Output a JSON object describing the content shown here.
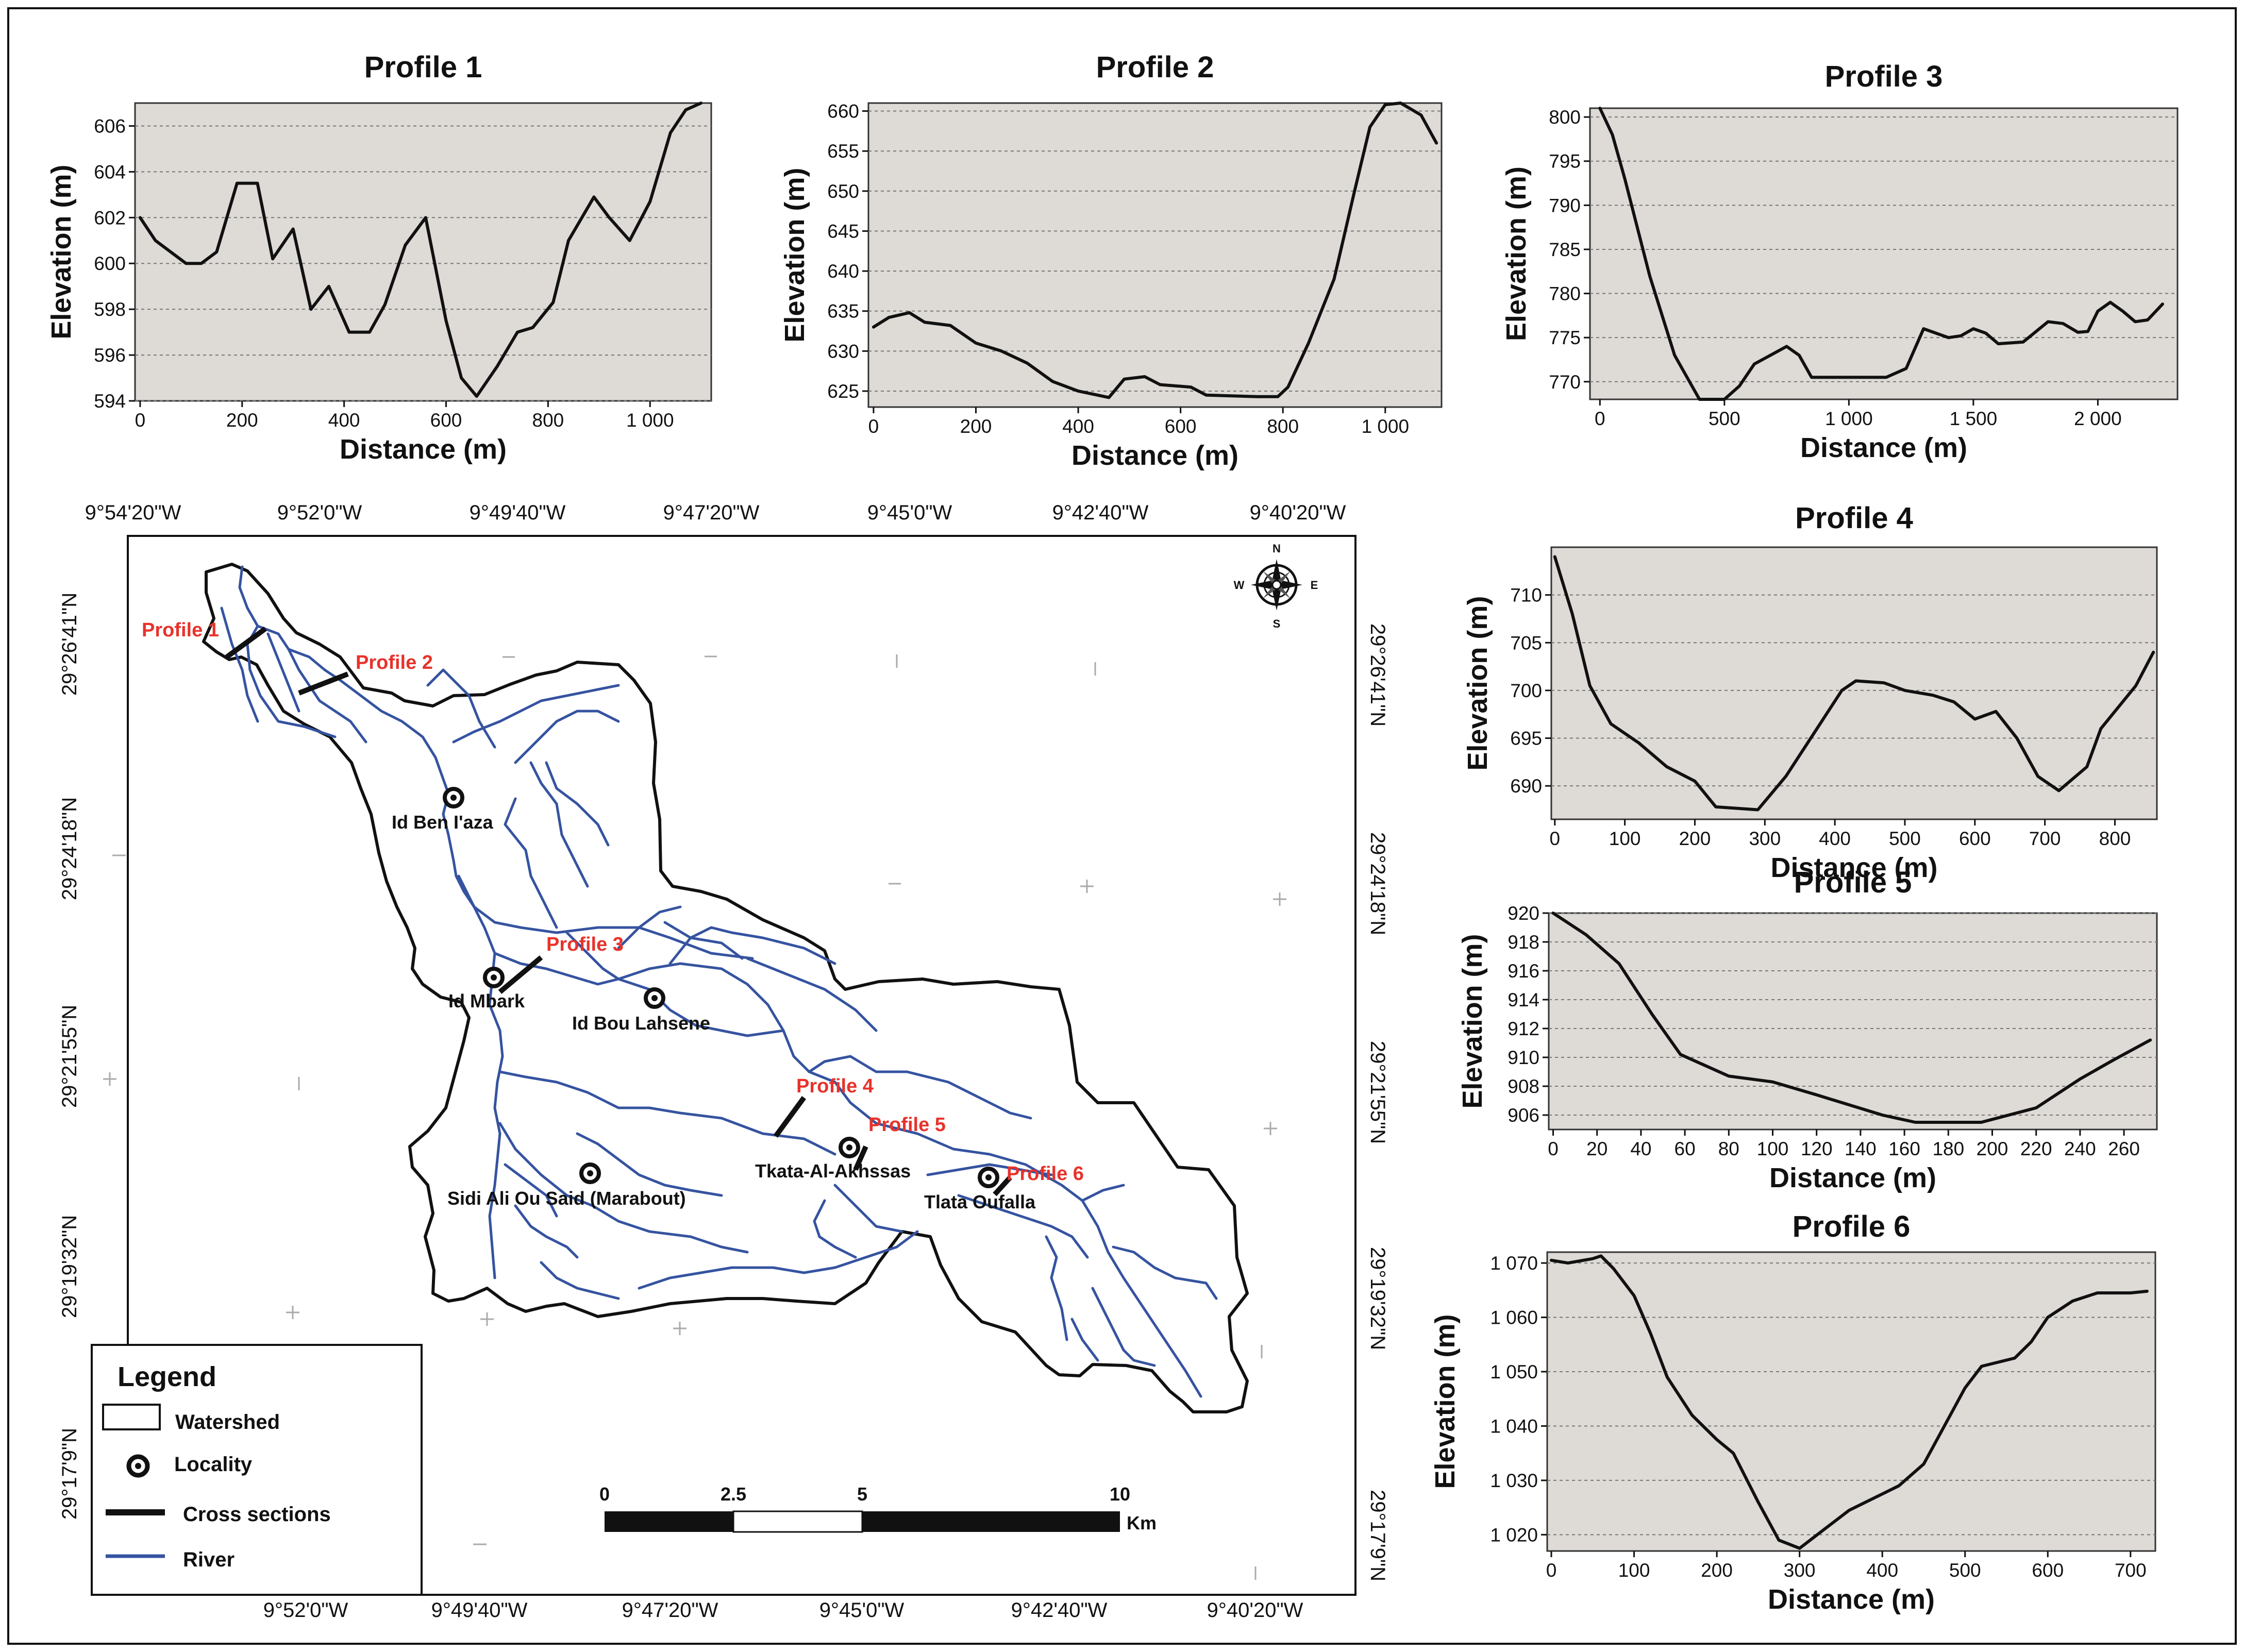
{
  "profiles": [
    {
      "title": "Profile 1",
      "xlabel": "Distance (m)",
      "ylabel": "Elevation (m)",
      "xlim": [
        -10,
        1120
      ],
      "ylim": [
        594,
        607
      ],
      "xticks": [
        {
          "v": 0,
          "l": "0"
        },
        {
          "v": 200,
          "l": "200"
        },
        {
          "v": 400,
          "l": "400"
        },
        {
          "v": 600,
          "l": "600"
        },
        {
          "v": 800,
          "l": "800"
        },
        {
          "v": 1000,
          "l": "1 000"
        }
      ],
      "yticks": [
        {
          "v": 594,
          "l": "594"
        },
        {
          "v": 596,
          "l": "596"
        },
        {
          "v": 598,
          "l": "598"
        },
        {
          "v": 600,
          "l": "600"
        },
        {
          "v": 602,
          "l": "602"
        },
        {
          "v": 604,
          "l": "604"
        },
        {
          "v": 606,
          "l": "606"
        }
      ],
      "points": [
        [
          0,
          602
        ],
        [
          30,
          601
        ],
        [
          90,
          600
        ],
        [
          120,
          600
        ],
        [
          150,
          600.5
        ],
        [
          190,
          603.5
        ],
        [
          230,
          603.5
        ],
        [
          260,
          600.2
        ],
        [
          300,
          601.5
        ],
        [
          335,
          598
        ],
        [
          370,
          599
        ],
        [
          410,
          597
        ],
        [
          450,
          597
        ],
        [
          480,
          598.2
        ],
        [
          520,
          600.8
        ],
        [
          560,
          602
        ],
        [
          600,
          597.5
        ],
        [
          630,
          595
        ],
        [
          660,
          594.2
        ],
        [
          700,
          595.5
        ],
        [
          740,
          597
        ],
        [
          770,
          597.2
        ],
        [
          810,
          598.3
        ],
        [
          840,
          601
        ],
        [
          890,
          602.9
        ],
        [
          920,
          602
        ],
        [
          960,
          601
        ],
        [
          1000,
          602.7
        ],
        [
          1040,
          605.7
        ],
        [
          1070,
          606.7
        ],
        [
          1100,
          607
        ]
      ]
    },
    {
      "title": "Profile 2",
      "xlabel": "Distance (m)",
      "ylabel": "Elevation (m)",
      "xlim": [
        -10,
        1110
      ],
      "ylim": [
        623,
        661
      ],
      "xticks": [
        {
          "v": 0,
          "l": "0"
        },
        {
          "v": 200,
          "l": "200"
        },
        {
          "v": 400,
          "l": "400"
        },
        {
          "v": 600,
          "l": "600"
        },
        {
          "v": 800,
          "l": "800"
        },
        {
          "v": 1000,
          "l": "1 000"
        }
      ],
      "yticks": [
        {
          "v": 625,
          "l": "625"
        },
        {
          "v": 630,
          "l": "630"
        },
        {
          "v": 635,
          "l": "635"
        },
        {
          "v": 640,
          "l": "640"
        },
        {
          "v": 645,
          "l": "645"
        },
        {
          "v": 650,
          "l": "650"
        },
        {
          "v": 655,
          "l": "655"
        },
        {
          "v": 660,
          "l": "660"
        }
      ],
      "points": [
        [
          0,
          633
        ],
        [
          30,
          634.2
        ],
        [
          70,
          634.8
        ],
        [
          100,
          633.6
        ],
        [
          150,
          633.2
        ],
        [
          200,
          631
        ],
        [
          250,
          630
        ],
        [
          300,
          628.5
        ],
        [
          350,
          626.2
        ],
        [
          400,
          625
        ],
        [
          460,
          624.2
        ],
        [
          490,
          626.5
        ],
        [
          530,
          626.8
        ],
        [
          560,
          625.8
        ],
        [
          620,
          625.5
        ],
        [
          650,
          624.5
        ],
        [
          750,
          624.3
        ],
        [
          790,
          624.3
        ],
        [
          810,
          625.5
        ],
        [
          850,
          631
        ],
        [
          900,
          639
        ],
        [
          940,
          650
        ],
        [
          970,
          658
        ],
        [
          1000,
          660.8
        ],
        [
          1030,
          661
        ],
        [
          1070,
          659.5
        ],
        [
          1100,
          656
        ]
      ]
    },
    {
      "title": "Profile 3",
      "xlabel": "Distance (m)",
      "ylabel": "Elevation (m)",
      "xlim": [
        -40,
        2320
      ],
      "ylim": [
        768,
        801
      ],
      "xticks": [
        {
          "v": 0,
          "l": "0"
        },
        {
          "v": 500,
          "l": "500"
        },
        {
          "v": 1000,
          "l": "1 000"
        },
        {
          "v": 1500,
          "l": "1 500"
        },
        {
          "v": 2000,
          "l": "2 000"
        }
      ],
      "yticks": [
        {
          "v": 770,
          "l": "770"
        },
        {
          "v": 775,
          "l": "775"
        },
        {
          "v": 780,
          "l": "780"
        },
        {
          "v": 785,
          "l": "785"
        },
        {
          "v": 790,
          "l": "790"
        },
        {
          "v": 795,
          "l": "795"
        },
        {
          "v": 800,
          "l": "800"
        }
      ],
      "points": [
        [
          0,
          801
        ],
        [
          50,
          798
        ],
        [
          100,
          793
        ],
        [
          200,
          782
        ],
        [
          300,
          773
        ],
        [
          360,
          770
        ],
        [
          400,
          768
        ],
        [
          500,
          768
        ],
        [
          560,
          769.5
        ],
        [
          620,
          772
        ],
        [
          750,
          774
        ],
        [
          800,
          773
        ],
        [
          850,
          770.5
        ],
        [
          1000,
          770.5
        ],
        [
          1150,
          770.5
        ],
        [
          1230,
          771.5
        ],
        [
          1300,
          776
        ],
        [
          1400,
          775
        ],
        [
          1450,
          775.2
        ],
        [
          1500,
          776
        ],
        [
          1550,
          775.5
        ],
        [
          1600,
          774.3
        ],
        [
          1700,
          774.5
        ],
        [
          1800,
          776.8
        ],
        [
          1860,
          776.6
        ],
        [
          1920,
          775.6
        ],
        [
          1960,
          775.7
        ],
        [
          2000,
          778
        ],
        [
          2050,
          779
        ],
        [
          2100,
          778
        ],
        [
          2150,
          776.8
        ],
        [
          2200,
          777
        ],
        [
          2260,
          778.8
        ]
      ]
    },
    {
      "title": "Profile 4",
      "xlabel": "Distance (m)",
      "ylabel": "Elevation (m)",
      "xlim": [
        -5,
        860
      ],
      "ylim": [
        686.5,
        715
      ],
      "xticks": [
        {
          "v": 0,
          "l": "0"
        },
        {
          "v": 100,
          "l": "100"
        },
        {
          "v": 200,
          "l": "200"
        },
        {
          "v": 300,
          "l": "300"
        },
        {
          "v": 400,
          "l": "400"
        },
        {
          "v": 500,
          "l": "500"
        },
        {
          "v": 600,
          "l": "600"
        },
        {
          "v": 700,
          "l": "700"
        },
        {
          "v": 800,
          "l": "800"
        }
      ],
      "yticks": [
        {
          "v": 690,
          "l": "690"
        },
        {
          "v": 695,
          "l": "695"
        },
        {
          "v": 700,
          "l": "700"
        },
        {
          "v": 705,
          "l": "705"
        },
        {
          "v": 710,
          "l": "710"
        }
      ],
      "points": [
        [
          0,
          714
        ],
        [
          25,
          708
        ],
        [
          50,
          700.5
        ],
        [
          80,
          696.5
        ],
        [
          120,
          694.5
        ],
        [
          160,
          692
        ],
        [
          200,
          690.5
        ],
        [
          230,
          687.8
        ],
        [
          290,
          687.5
        ],
        [
          330,
          691
        ],
        [
          370,
          695.5
        ],
        [
          410,
          700
        ],
        [
          430,
          701
        ],
        [
          470,
          700.8
        ],
        [
          500,
          700
        ],
        [
          540,
          699.5
        ],
        [
          570,
          698.8
        ],
        [
          600,
          697
        ],
        [
          630,
          697.8
        ],
        [
          660,
          695
        ],
        [
          690,
          691
        ],
        [
          720,
          689.5
        ],
        [
          760,
          692
        ],
        [
          780,
          696
        ],
        [
          830,
          700.5
        ],
        [
          855,
          704
        ]
      ]
    },
    {
      "title": "Profile 5",
      "xlabel": "Distance (m)",
      "ylabel": "Elevation (m)",
      "xlim": [
        -2,
        275
      ],
      "ylim": [
        905,
        920
      ],
      "xticks": [
        {
          "v": 0,
          "l": "0"
        },
        {
          "v": 20,
          "l": "20"
        },
        {
          "v": 40,
          "l": "40"
        },
        {
          "v": 60,
          "l": "60"
        },
        {
          "v": 80,
          "l": "80"
        },
        {
          "v": 100,
          "l": "100"
        },
        {
          "v": 120,
          "l": "120"
        },
        {
          "v": 140,
          "l": "140"
        },
        {
          "v": 160,
          "l": "160"
        },
        {
          "v": 180,
          "l": "180"
        },
        {
          "v": 200,
          "l": "200"
        },
        {
          "v": 220,
          "l": "220"
        },
        {
          "v": 240,
          "l": "240"
        },
        {
          "v": 260,
          "l": "260"
        }
      ],
      "yticks": [
        {
          "v": 906,
          "l": "906"
        },
        {
          "v": 908,
          "l": "908"
        },
        {
          "v": 910,
          "l": "910"
        },
        {
          "v": 912,
          "l": "912"
        },
        {
          "v": 914,
          "l": "914"
        },
        {
          "v": 916,
          "l": "916"
        },
        {
          "v": 918,
          "l": "918"
        },
        {
          "v": 920,
          "l": "920"
        }
      ],
      "points": [
        [
          0,
          920
        ],
        [
          15,
          918.5
        ],
        [
          30,
          916.5
        ],
        [
          45,
          913
        ],
        [
          58,
          910.2
        ],
        [
          80,
          908.7
        ],
        [
          100,
          908.3
        ],
        [
          120,
          907.4
        ],
        [
          150,
          906
        ],
        [
          165,
          905.5
        ],
        [
          195,
          905.5
        ],
        [
          220,
          906.5
        ],
        [
          240,
          908.5
        ],
        [
          255,
          909.8
        ],
        [
          272,
          911.2
        ]
      ]
    },
    {
      "title": "Profile 6",
      "xlabel": "Distance (m)",
      "ylabel": "Elevation (m)",
      "xlim": [
        -5,
        730
      ],
      "ylim": [
        1017,
        1072
      ],
      "xticks": [
        {
          "v": 0,
          "l": "0"
        },
        {
          "v": 100,
          "l": "100"
        },
        {
          "v": 200,
          "l": "200"
        },
        {
          "v": 300,
          "l": "300"
        },
        {
          "v": 400,
          "l": "400"
        },
        {
          "v": 500,
          "l": "500"
        },
        {
          "v": 600,
          "l": "600"
        },
        {
          "v": 700,
          "l": "700"
        }
      ],
      "yticks": [
        {
          "v": 1020,
          "l": "1 020"
        },
        {
          "v": 1030,
          "l": "1 030"
        },
        {
          "v": 1040,
          "l": "1 040"
        },
        {
          "v": 1050,
          "l": "1 050"
        },
        {
          "v": 1060,
          "l": "1 060"
        },
        {
          "v": 1070,
          "l": "1 070"
        }
      ],
      "points": [
        [
          0,
          1070.5
        ],
        [
          20,
          1070
        ],
        [
          50,
          1070.8
        ],
        [
          60,
          1071.3
        ],
        [
          75,
          1069
        ],
        [
          100,
          1064
        ],
        [
          120,
          1057
        ],
        [
          140,
          1049
        ],
        [
          170,
          1042
        ],
        [
          200,
          1037.5
        ],
        [
          220,
          1035
        ],
        [
          250,
          1026
        ],
        [
          275,
          1019
        ],
        [
          300,
          1017.5
        ],
        [
          330,
          1021
        ],
        [
          360,
          1024.5
        ],
        [
          400,
          1027.5
        ],
        [
          420,
          1029
        ],
        [
          450,
          1033
        ],
        [
          475,
          1040
        ],
        [
          500,
          1047
        ],
        [
          520,
          1051
        ],
        [
          560,
          1052.5
        ],
        [
          580,
          1055.5
        ],
        [
          600,
          1060
        ],
        [
          630,
          1063
        ],
        [
          660,
          1064.5
        ],
        [
          700,
          1064.5
        ],
        [
          720,
          1064.8
        ]
      ]
    }
  ],
  "map": {
    "top_lon": [
      "9°54'20\"W",
      "9°52'0\"W",
      "9°49'40\"W",
      "9°47'20\"W",
      "9°45'0\"W",
      "9°42'40\"W",
      "9°40'20\"W"
    ],
    "bottom_lon": [
      "9°52'0\"W",
      "9°49'40\"W",
      "9°47'20\"W",
      "9°45'0\"W",
      "9°42'40\"W",
      "9°40'20\"W"
    ],
    "left_lat": [
      "29°26'41\"N",
      "29°24'18\"N",
      "29°21'55\"N",
      "29°19'32\"N",
      "29°17'9\"N"
    ],
    "right_lat": [
      "29°26'41\"N",
      "29°24'18\"N",
      "29°21'55\"N",
      "29°19'32\"N",
      "29°17'9\"N"
    ],
    "compass": {
      "n": "N",
      "s": "S",
      "e": "E",
      "w": "W"
    },
    "localities": [
      "Id Ben I'aza",
      "Id Mbark",
      "Id Bou Lahsene",
      "Sidi Ali Ou Said (Marabout)",
      "Tkata-Al-Akhssas",
      "Tlata Oufalla"
    ],
    "profile_labels": [
      "Profile 1",
      "Profile 2",
      "Profile 3",
      "Profile 4",
      "Profile 5",
      "Profile 6"
    ],
    "legend": {
      "title": "Legend",
      "watershed": "Watershed",
      "locality": "Locality",
      "cross_sections": "Cross sections",
      "river": "River"
    },
    "scale": {
      "labels": [
        "0",
        "2.5",
        "5",
        "10"
      ],
      "unit": "Km"
    },
    "colors": {
      "river": "#3553a0",
      "profile_label": "#e8322b",
      "plot_bg": "#dedad6"
    }
  }
}
